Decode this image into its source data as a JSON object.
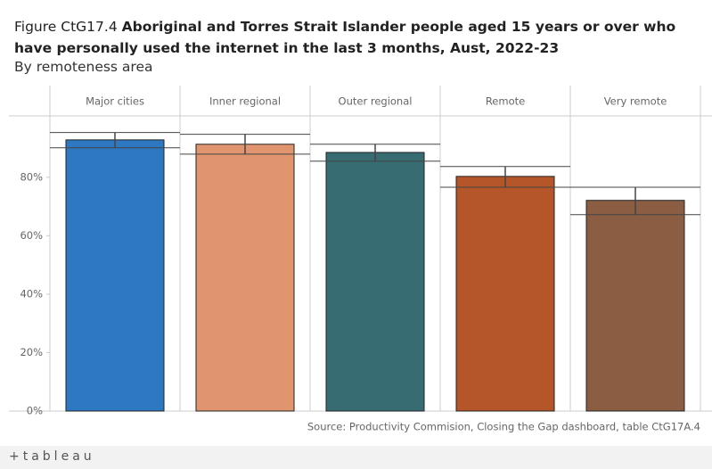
{
  "chart_data": {
    "type": "bar",
    "title_prefix": "Figure CtG17.4",
    "title": "Aboriginal and Torres Strait Islander people aged 15 years or over who have personally used the internet in the last 3 months, Aust, 2022-23",
    "subtitle": "By remoteness area",
    "categories": [
      "Major cities",
      "Inner regional",
      "Outer regional",
      "Remote",
      "Very remote"
    ],
    "values": [
      92.8,
      91.3,
      88.5,
      80.3,
      72.1
    ],
    "ci_lower": [
      90.1,
      87.9,
      85.5,
      76.6,
      67.2
    ],
    "ci_upper": [
      95.3,
      94.7,
      91.3,
      83.7,
      76.6
    ],
    "colors": [
      "#2e78c2",
      "#e0956e",
      "#376d72",
      "#b5562a",
      "#8b5e43"
    ],
    "ylim": [
      0,
      101
    ],
    "yticks": [
      {
        "value": 0,
        "label": "0%"
      },
      {
        "value": 20,
        "label": "20%"
      },
      {
        "value": 40,
        "label": "40%"
      },
      {
        "value": 60,
        "label": "60%"
      },
      {
        "value": 80,
        "label": "80%"
      }
    ],
    "source": "Source: Productivity Commision, Closing the Gap dashboard, table CtG17A.4",
    "logo": "+tableau"
  }
}
